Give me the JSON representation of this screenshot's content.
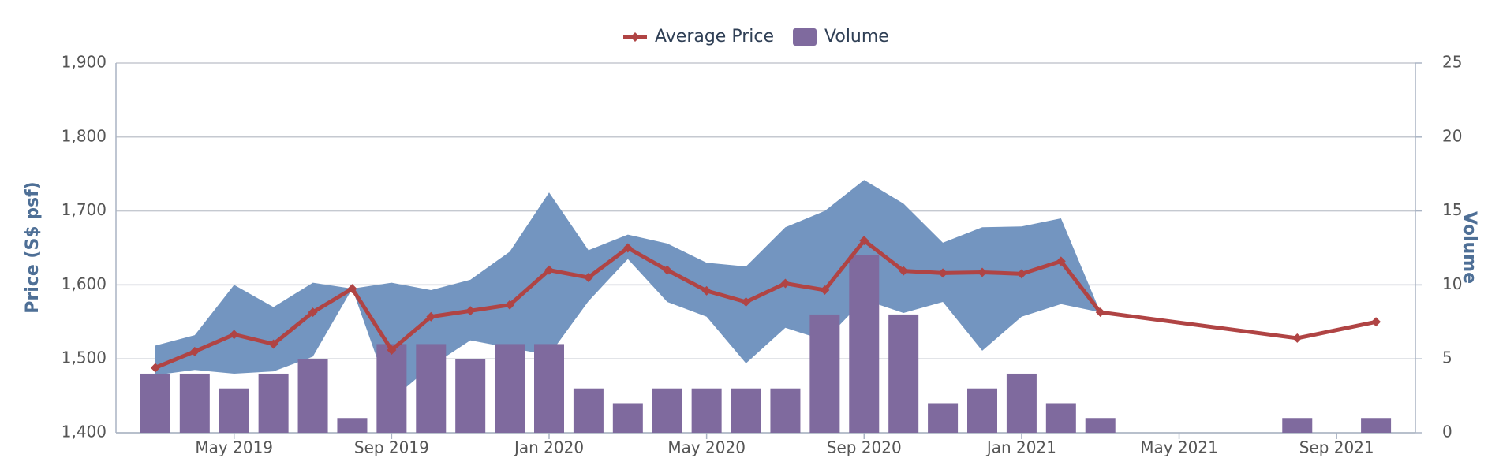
{
  "chart_data": {
    "type": "line",
    "y_label": "Price (S$ psf)",
    "y2_label": "Volume",
    "x": [
      "2019-03",
      "2019-04",
      "2019-05",
      "2019-06",
      "2019-07",
      "2019-08",
      "2019-09",
      "2019-10",
      "2019-11",
      "2019-12",
      "2020-01",
      "2020-02",
      "2020-03",
      "2020-04",
      "2020-05",
      "2020-06",
      "2020-07",
      "2020-08",
      "2020-09",
      "2020-10",
      "2020-11",
      "2020-12",
      "2021-01",
      "2021-02",
      "2021-03",
      "2021-08",
      "2021-10"
    ],
    "xlim": [
      "2019-02",
      "2021-11"
    ],
    "xticks": [
      {
        "value": "2019-05",
        "label": "May 2019"
      },
      {
        "value": "2019-09",
        "label": "Sep 2019"
      },
      {
        "value": "2020-01",
        "label": "Jan 2020"
      },
      {
        "value": "2020-05",
        "label": "May 2020"
      },
      {
        "value": "2020-09",
        "label": "Sep 2020"
      },
      {
        "value": "2021-01",
        "label": "Jan 2021"
      },
      {
        "value": "2021-05",
        "label": "May 2021"
      },
      {
        "value": "2021-09",
        "label": "Sep 2021"
      }
    ],
    "ylim": [
      1400,
      1900
    ],
    "yticks": [
      {
        "value": 1400,
        "label": "1,400"
      },
      {
        "value": 1500,
        "label": "1,500"
      },
      {
        "value": 1600,
        "label": "1,600"
      },
      {
        "value": 1700,
        "label": "1,700"
      },
      {
        "value": 1800,
        "label": "1,800"
      },
      {
        "value": 1900,
        "label": "1,900"
      }
    ],
    "y2lim": [
      0,
      25
    ],
    "y2ticks": [
      0,
      5,
      10,
      15,
      20,
      25
    ],
    "grid": true,
    "legend": "top",
    "series": [
      {
        "name": "Average Price",
        "type": "line",
        "color": "#b04444",
        "values": [
          1488,
          1510,
          1533,
          1520,
          1563,
          1595,
          1512,
          1557,
          1565,
          1573,
          1620,
          1610,
          1650,
          1620,
          1592,
          1577,
          1602,
          1593,
          1660,
          1619,
          1616,
          1617,
          1615,
          1632,
          1563,
          1528,
          1550
        ]
      },
      {
        "name": "Volume",
        "type": "bar",
        "axis": "y2",
        "color": "#7f6a9e",
        "values": [
          4,
          4,
          3,
          4,
          5,
          1,
          6,
          6,
          5,
          6,
          6,
          3,
          2,
          3,
          3,
          3,
          3,
          8,
          12,
          8,
          2,
          3,
          4,
          2,
          1,
          1,
          1
        ]
      }
    ],
    "range": {
      "color": "#7395c0",
      "high": [
        1518,
        1532,
        1600,
        1570,
        1603,
        1595,
        1603,
        1593,
        1607,
        1645,
        1725,
        1647,
        1668,
        1656,
        1630,
        1625,
        1678,
        1700,
        1742,
        1710,
        1657,
        1678,
        1679,
        1690,
        1563,
        null,
        null
      ],
      "low": [
        1478,
        1485,
        1480,
        1483,
        1503,
        1595,
        1445,
        1490,
        1525,
        1515,
        1505,
        1578,
        1635,
        1577,
        1557,
        1494,
        1542,
        1525,
        1580,
        1562,
        1577,
        1511,
        1557,
        1574,
        1563,
        null,
        null
      ]
    }
  }
}
